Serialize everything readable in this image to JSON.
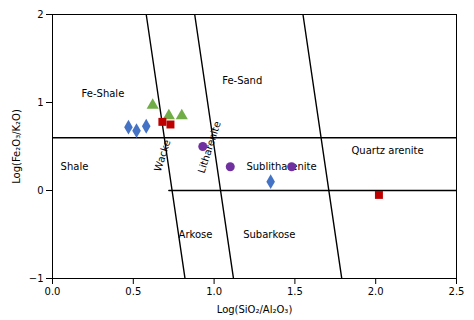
{
  "chart_data": {
    "type": "scatter",
    "xlabel": "Log(SiO₂/Al₂O₃)",
    "ylabel": "Log(Fe₂O₃/K₂O)",
    "xlim": [
      0,
      2.5
    ],
    "ylim": [
      -1,
      2
    ],
    "xticks": [
      {
        "value": 0,
        "label": "0.0"
      },
      0.5,
      {
        "value": 1.0,
        "label": "1.0"
      },
      1.5,
      {
        "value": 2.0,
        "label": "2.0"
      },
      2.5
    ],
    "yticks": [
      -1,
      0,
      1,
      2
    ],
    "grid": false,
    "series": [
      {
        "color": "#4472C4",
        "marker": "diamond",
        "x": [
          0.47,
          0.52,
          0.58,
          1.35
        ],
        "y": [
          0.72,
          0.68,
          0.73,
          0.1
        ]
      },
      {
        "color": "#70AD47",
        "marker": "triangle",
        "x": [
          0.62,
          0.72,
          0.8
        ],
        "y": [
          0.97,
          0.85,
          0.85
        ]
      },
      {
        "color": "#BE0000",
        "marker": "square",
        "x": [
          0.68,
          0.73,
          2.02
        ],
        "y": [
          0.78,
          0.75,
          -0.05
        ]
      },
      {
        "color": "#7030A0",
        "marker": "circle",
        "x": [
          0.93,
          1.1,
          1.48
        ],
        "y": [
          0.5,
          0.27,
          0.27
        ]
      }
    ],
    "hlines": [
      {
        "y": 0.6,
        "color": "#000000"
      }
    ],
    "boundary_lines": [
      {
        "color": "#000000",
        "x": [
          0.72,
          2.5
        ],
        "y": [
          0.0,
          0.0
        ]
      },
      {
        "color": "#000000",
        "x": [
          0.58,
          0.82
        ],
        "y": [
          2.0,
          -1.0
        ]
      },
      {
        "color": "#000000",
        "x": [
          0.88,
          1.12
        ],
        "y": [
          2.0,
          -1.0
        ]
      },
      {
        "color": "#000000",
        "x": [
          1.55,
          1.79
        ],
        "y": [
          2.0,
          -1.0
        ]
      }
    ],
    "annotations": [
      {
        "text": "Fe-Shale",
        "x": 0.18,
        "y": 1.1
      },
      {
        "text": "Fe-Sand",
        "x": 1.05,
        "y": 1.25
      },
      {
        "text": "Shale",
        "x": 0.05,
        "y": 0.27
      },
      {
        "text": "Wacke",
        "x": 0.65,
        "y": 0.22,
        "orientation": "slanted"
      },
      {
        "text": "Litharenite",
        "x": 0.92,
        "y": 0.2,
        "orientation": "slanted"
      },
      {
        "text": "Sublitharenite",
        "x": 1.2,
        "y": 0.27
      },
      {
        "text": "Arkose",
        "x": 0.78,
        "y": -0.5
      },
      {
        "text": "Subarkose",
        "x": 1.18,
        "y": -0.5
      },
      {
        "text": "Quartz arenite",
        "x": 1.85,
        "y": 0.45
      }
    ]
  }
}
